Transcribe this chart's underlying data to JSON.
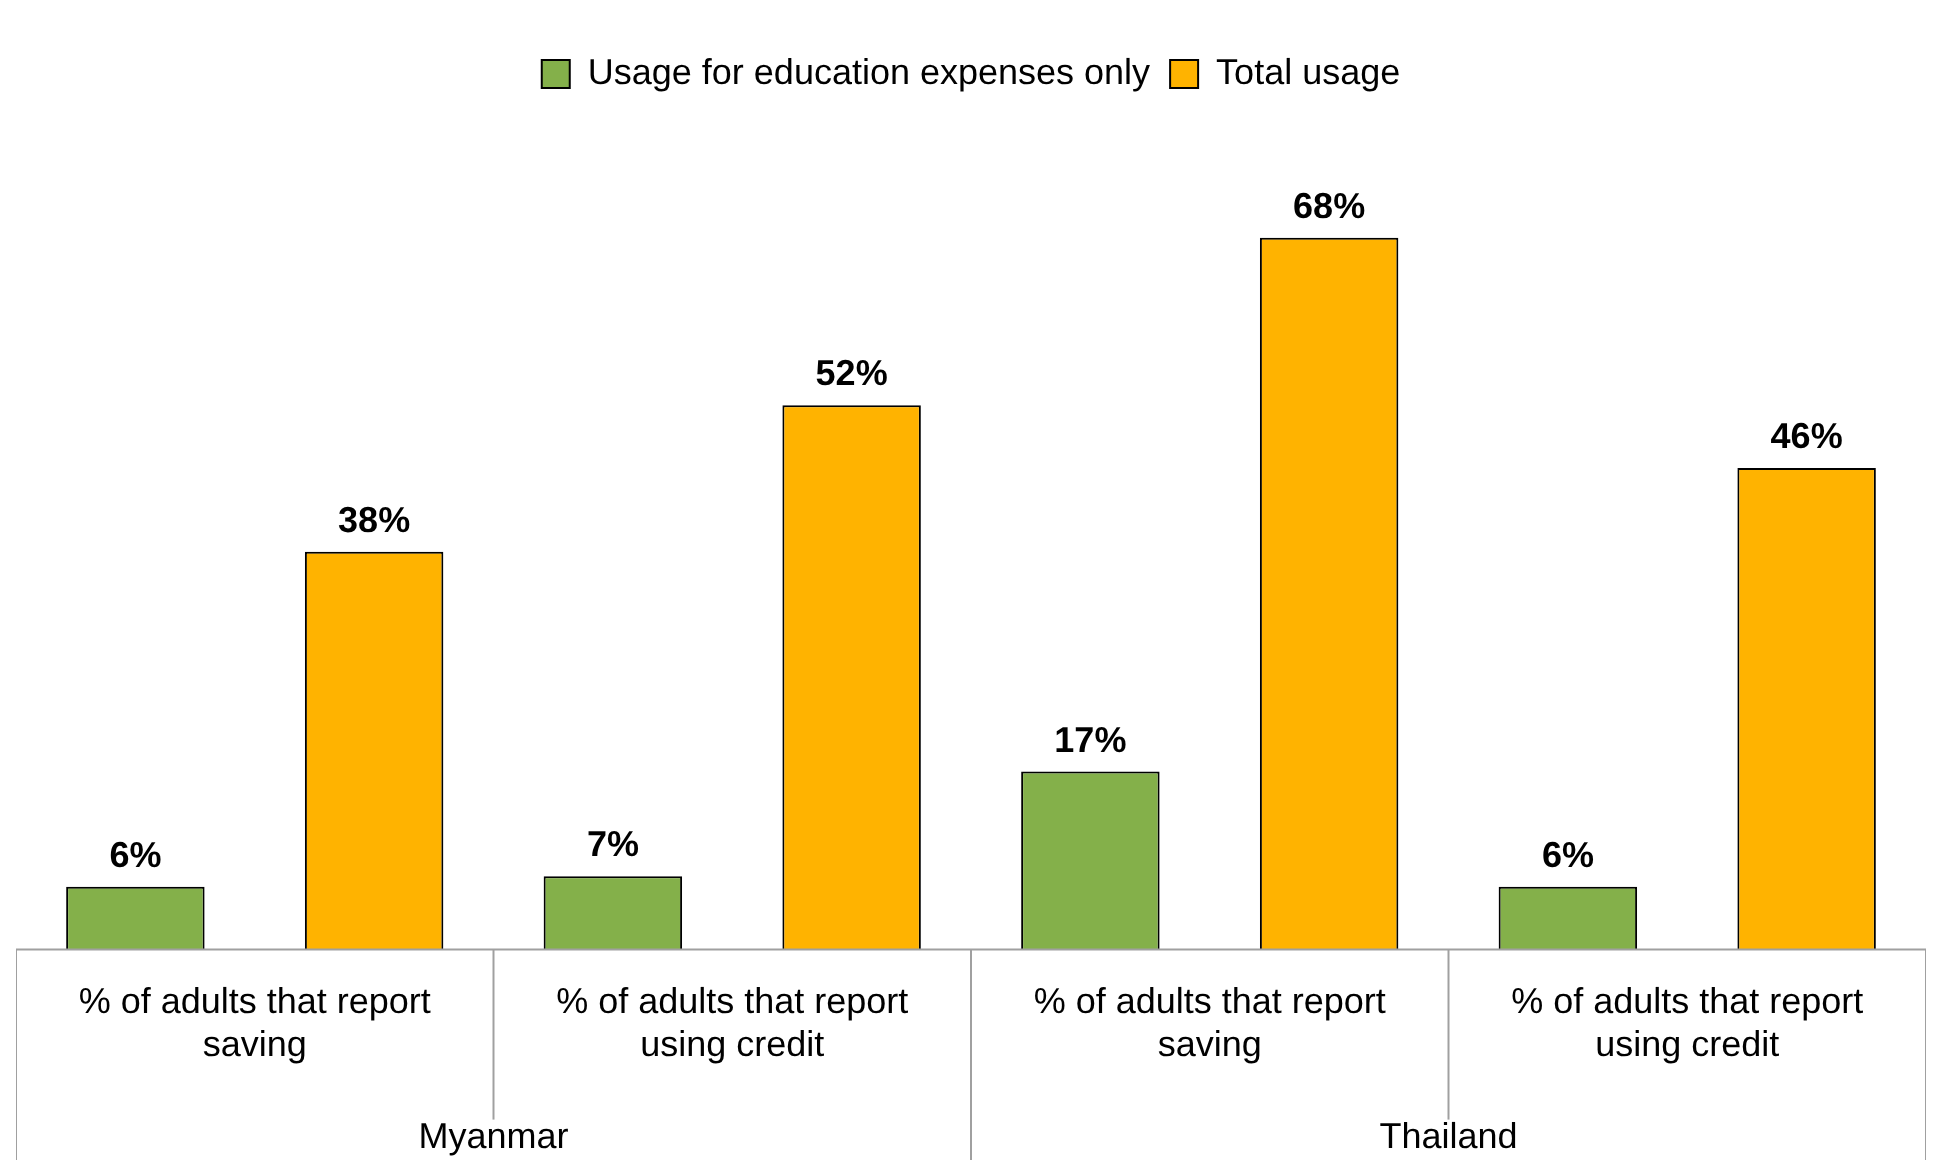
{
  "chart_data": {
    "type": "bar",
    "categories": [
      "% of adults that report saving",
      "% of adults that report using credit",
      "% of adults that report saving",
      "% of adults that report using credit"
    ],
    "series": [
      {
        "name": "Usage for education expenses only",
        "color": "#84b04a",
        "values": [
          6,
          7,
          17,
          6
        ],
        "value_labels": [
          "6%",
          "7%",
          "17%",
          "6%"
        ]
      },
      {
        "name": "Total usage",
        "color": "#ffb300",
        "values": [
          38,
          52,
          68,
          46
        ],
        "value_labels": [
          "38%",
          "52%",
          "68%",
          "46%"
        ]
      }
    ],
    "annotations": [
      "Myanmar",
      "Thailand"
    ],
    "legend": "top"
  }
}
